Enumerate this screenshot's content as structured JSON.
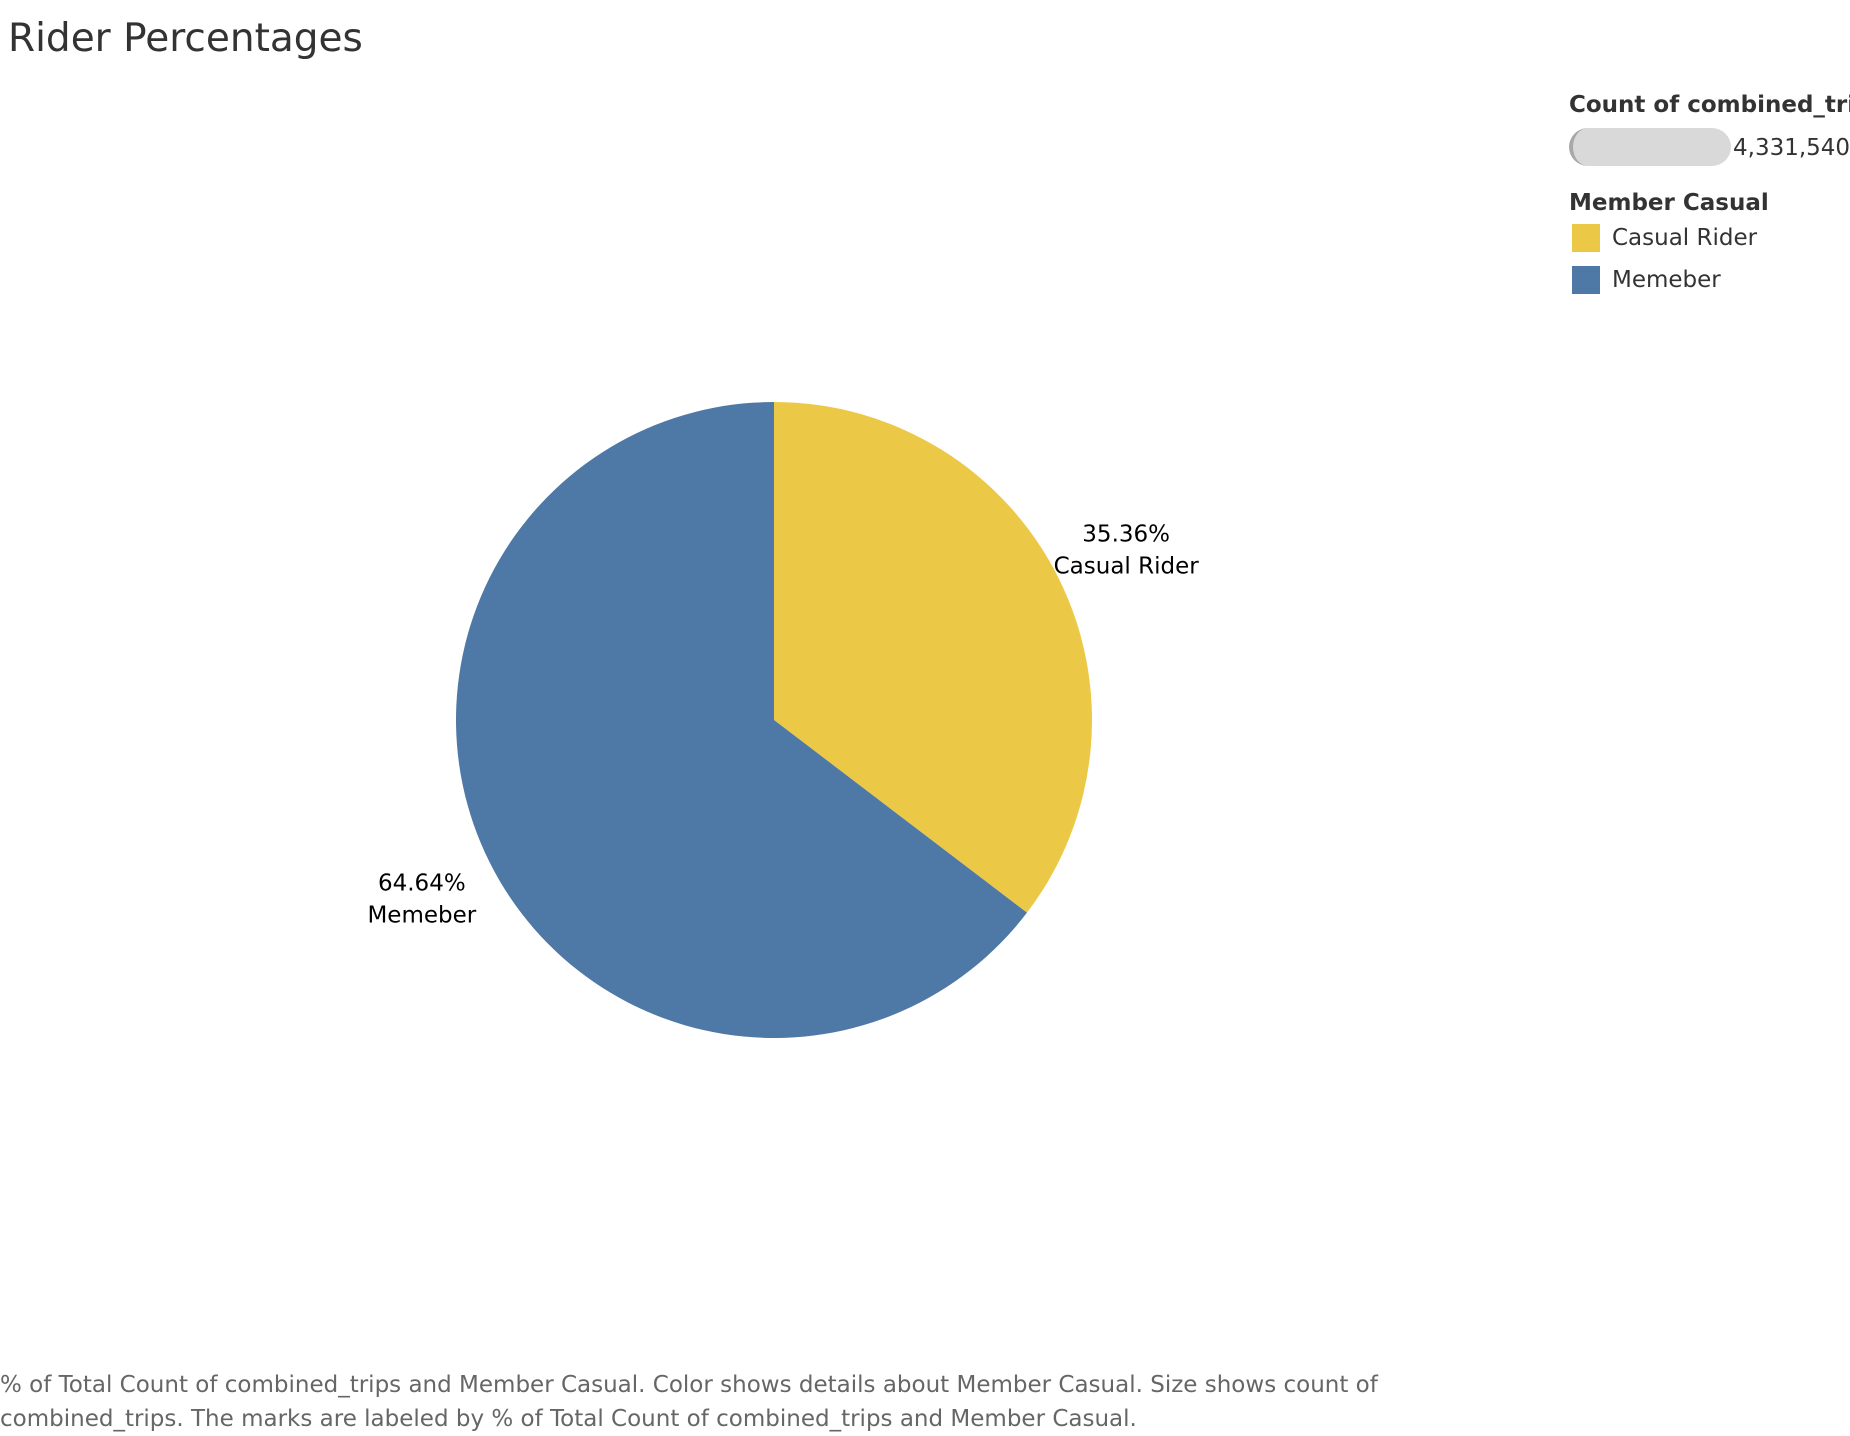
{
  "title": "Rider Percentages",
  "legend": {
    "size_title": "Count of combined_trips",
    "size_value": "4,331,540",
    "color_title": "Member Casual",
    "items": [
      {
        "label": "Casual Rider",
        "color": "#ebc947"
      },
      {
        "label": "Memeber",
        "color": "#4e78a5"
      }
    ]
  },
  "chart_data": {
    "type": "pie",
    "total_count": 4331540,
    "slices": [
      {
        "label": "Casual Rider",
        "value": 35.36,
        "value_label": "35.36%",
        "color": "#ebc947"
      },
      {
        "label": "Memeber",
        "value": 64.64,
        "value_label": "64.64%",
        "color": "#4e78a5"
      }
    ]
  },
  "caption": "% of Total Count of combined_trips and Member Casual.  Color shows details about Member Casual.  Size shows count of combined_trips.  The marks are labeled by % of Total Count of combined_trips and Member Casual."
}
